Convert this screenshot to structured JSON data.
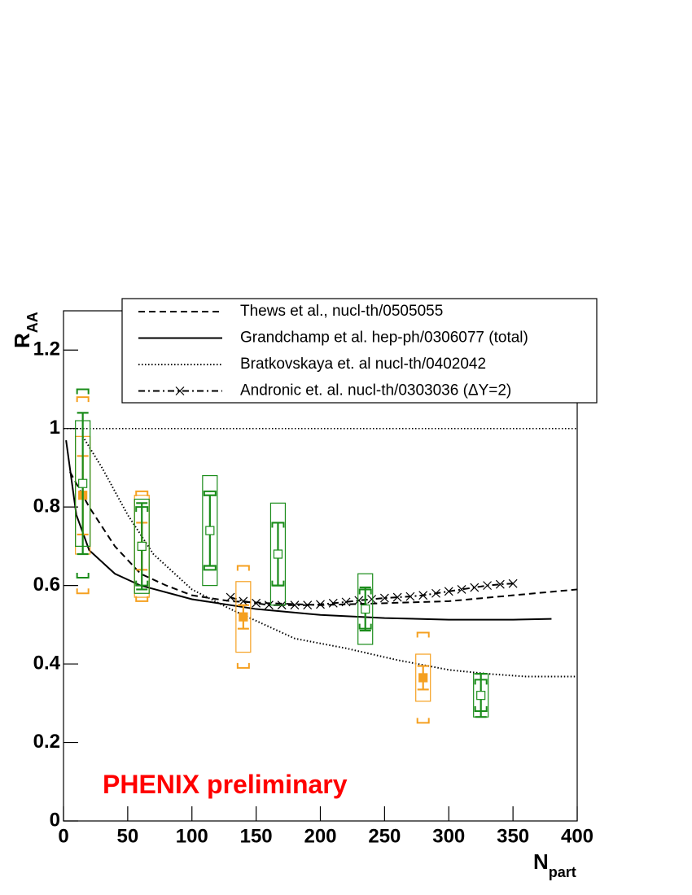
{
  "chart_data": {
    "type": "scatter",
    "xlabel": "N",
    "xlabel_sub": "part",
    "ylabel": "R",
    "ylabel_sub": "AA",
    "annotation": "PHENIX preliminary",
    "annotation_color": "#ff0000",
    "xlim": [
      0,
      400
    ],
    "xticks": [
      0,
      50,
      100,
      150,
      200,
      250,
      300,
      350,
      400
    ],
    "ylim": [
      0,
      1.3
    ],
    "yticks": [
      0,
      0.2,
      0.4,
      0.6,
      0.8,
      1,
      1.2
    ],
    "reference_line": 1,
    "legend": "top-right",
    "series": [
      {
        "name": "Thews et al., nucl-th/0505055",
        "color": "#000000",
        "style": "dashed",
        "x": [
          5,
          20,
          40,
          60,
          80,
          100,
          130,
          160,
          200,
          250,
          300,
          350,
          400
        ],
        "values": [
          0.89,
          0.8,
          0.7,
          0.63,
          0.6,
          0.575,
          0.56,
          0.555,
          0.55,
          0.555,
          0.56,
          0.575,
          0.59
        ]
      },
      {
        "name": "Grandchamp et al. hep-ph/0306077 (total)",
        "color": "#000000",
        "style": "solid",
        "x": [
          2,
          10,
          20,
          40,
          60,
          100,
          150,
          200,
          250,
          300,
          350,
          380
        ],
        "values": [
          0.97,
          0.78,
          0.69,
          0.63,
          0.6,
          0.565,
          0.54,
          0.525,
          0.517,
          0.513,
          0.513,
          0.515
        ]
      },
      {
        "name": "Bratkovskaya et. al nucl-th/0402042",
        "color": "#000000",
        "style": "dotted",
        "x": [
          15,
          30,
          50,
          70,
          100,
          130,
          150,
          180,
          220,
          260,
          300,
          330,
          360,
          400
        ],
        "values": [
          0.98,
          0.9,
          0.78,
          0.68,
          0.59,
          0.54,
          0.51,
          0.465,
          0.44,
          0.41,
          0.385,
          0.375,
          0.368,
          0.368
        ]
      },
      {
        "name": "Andronic et. al. nucl-th/0303036 (ΔY=2)",
        "color": "#000000",
        "style": "dashdot",
        "marker": "x",
        "x": [
          130,
          140,
          150,
          160,
          170,
          180,
          190,
          200,
          210,
          220,
          230,
          240,
          250,
          260,
          270,
          280,
          290,
          300,
          310,
          320,
          330,
          340,
          350
        ],
        "values": [
          0.57,
          0.56,
          0.555,
          0.55,
          0.55,
          0.55,
          0.55,
          0.552,
          0.555,
          0.558,
          0.562,
          0.565,
          0.568,
          0.57,
          0.572,
          0.575,
          0.58,
          0.585,
          0.59,
          0.595,
          0.6,
          0.603,
          0.605
        ]
      }
    ],
    "data_points": [
      {
        "color": "#f5a020",
        "marker": "filled-square",
        "x": [
          15,
          61,
          140,
          280
        ],
        "values": [
          0.83,
          0.7,
          0.52,
          0.365
        ],
        "errors": [
          0.1,
          0.06,
          0.03,
          0.03
        ],
        "sys_errors": [
          0.15,
          0.13,
          0.09,
          0.06
        ],
        "bracket_errors": [
          0.25,
          0.14,
          0.13,
          0.115
        ]
      },
      {
        "color": "#1a8c1a",
        "marker": "open-square",
        "x": [
          15,
          61,
          114,
          167,
          235,
          325
        ],
        "values": [
          0.86,
          0.7,
          0.74,
          0.68,
          0.54,
          0.32
        ],
        "errors": [
          0.18,
          0.11,
          0.09,
          0.08,
          0.055,
          0.055
        ],
        "sys_errors": [
          0.16,
          0.12,
          0.14,
          0.13,
          0.09,
          0.055
        ],
        "bracket_errors": [
          0.24,
          0.1,
          0.1,
          0.08,
          0.05,
          0.04
        ]
      }
    ]
  }
}
